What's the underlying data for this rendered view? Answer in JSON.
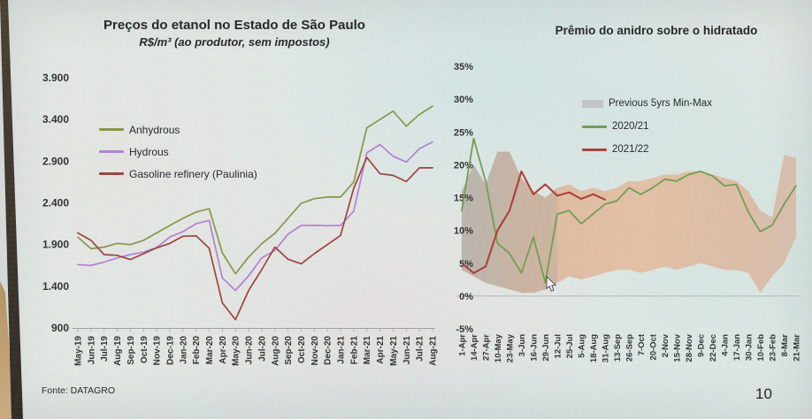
{
  "page": {
    "number": "10"
  },
  "source": "Fonte: DATAGRO",
  "chart_data": [
    {
      "type": "line",
      "title": "Preços do etanol no Estado de São Paulo",
      "subtitle": "R$/m³ (ao produtor, sem impostos)",
      "ylim": [
        900,
        3900
      ],
      "ytick_values": [
        900,
        1400,
        1900,
        2400,
        2900,
        3400,
        3900
      ],
      "ytick_labels": [
        "900",
        "1.400",
        "1.900",
        "2.400",
        "2.900",
        "3.400",
        "3.900"
      ],
      "grid": "off",
      "legend_position": "inside-top-left",
      "categories": [
        "May-19",
        "Jun-19",
        "Jul-19",
        "Aug-19",
        "Sep-19",
        "Oct-19",
        "Nov-19",
        "Dec-19",
        "Jan-20",
        "Feb-20",
        "Mar-20",
        "Apr-20",
        "May-20",
        "Jun-20",
        "Jul-20",
        "Aug-20",
        "Sep-20",
        "Oct-20",
        "Nov-20",
        "Dec-20",
        "Jan-21",
        "Feb-21",
        "Mar-21",
        "Apr-21",
        "May-21",
        "Jun-21",
        "Jul-21",
        "Aug-21"
      ],
      "series": [
        {
          "name": "Anhydrous",
          "color": "#84953f",
          "values": [
            1990,
            1850,
            1870,
            1915,
            1900,
            1950,
            2040,
            2130,
            2215,
            2290,
            2330,
            1800,
            1550,
            1750,
            1910,
            2035,
            2215,
            2395,
            2450,
            2470,
            2470,
            2650,
            3300,
            3400,
            3500,
            3320,
            3460,
            3560
          ]
        },
        {
          "name": "Hydrous",
          "color": "#b57bd5",
          "values": [
            1660,
            1650,
            1690,
            1740,
            1780,
            1810,
            1865,
            1990,
            2055,
            2150,
            2190,
            1500,
            1350,
            1525,
            1740,
            1830,
            2025,
            2130,
            2130,
            2125,
            2130,
            2300,
            3000,
            3100,
            2960,
            2890,
            3050,
            3130
          ]
        },
        {
          "name": "Gasoline refinery (Paulinia)",
          "color": "#9e3a34",
          "values": [
            2040,
            1950,
            1780,
            1770,
            1720,
            1790,
            1860,
            1915,
            2000,
            2005,
            1855,
            1200,
            1000,
            1350,
            1600,
            1870,
            1725,
            1670,
            1790,
            1900,
            2010,
            2575,
            2945,
            2750,
            2730,
            2655,
            2820,
            2820
          ]
        }
      ]
    },
    {
      "type": "line",
      "title": "Prêmio do anidro sobre o hidratado",
      "ylim": [
        -5,
        35
      ],
      "ytick_values": [
        -5,
        0,
        5,
        10,
        15,
        20,
        25,
        30,
        35
      ],
      "ytick_labels": [
        "-5%",
        "0%",
        "5%",
        "10%",
        "15%",
        "20%",
        "25%",
        "30%",
        "35%"
      ],
      "grid": "zero-line-only",
      "legend_position": "inside-top-right",
      "categories": [
        "1-Apr",
        "14-Apr",
        "27-Apr",
        "10-May",
        "23-May",
        "3-Jun",
        "16-Jun",
        "29-Jun",
        "12-Jul",
        "25-Jul",
        "5-Aug",
        "18-Aug",
        "31-Aug",
        "13-Sep",
        "26-Sep",
        "7-Oct",
        "20-Oct",
        "2-Nov",
        "15-Nov",
        "28-Nov",
        "9-Dec",
        "22-Dec",
        "4-Jan",
        "17-Jan",
        "30-Jan",
        "10-Feb",
        "23-Feb",
        "8-Mar",
        "21-Mar"
      ],
      "band": {
        "name": "Previous 5yrs Min-Max",
        "legend_color": "#c6c6c6",
        "min": [
          4,
          3,
          2,
          1.5,
          1,
          0.5,
          0.5,
          1,
          2,
          3,
          2.5,
          3,
          3.5,
          4,
          4,
          3.5,
          4,
          4.5,
          4,
          4.5,
          5,
          4.5,
          4,
          4,
          3.5,
          0.5,
          3,
          5,
          9
        ],
        "max": [
          16,
          20,
          17,
          22,
          22,
          18,
          16,
          15,
          16.5,
          17,
          16,
          16.5,
          16,
          16.5,
          17.5,
          17.5,
          18,
          18.5,
          18.5,
          19,
          19,
          18.5,
          18,
          17.5,
          16,
          13,
          12,
          21.5,
          21
        ]
      },
      "series": [
        {
          "name": "2020/21",
          "color": "#6f9c49",
          "values": [
            13,
            24,
            17.5,
            8,
            6.5,
            3.5,
            9,
            2,
            12.5,
            13,
            11,
            12.5,
            14,
            14.5,
            16.5,
            15.5,
            16.5,
            17.8,
            17.5,
            18.5,
            19,
            18.3,
            16.8,
            17,
            12.8,
            9.8,
            10.8,
            14,
            16.8
          ]
        },
        {
          "name": "2021/22",
          "color": "#ac392f",
          "values": [
            5,
            3.5,
            4.5,
            10,
            13,
            19,
            15.5,
            17,
            15.3,
            15.8,
            14.8,
            15.5,
            14.7,
            null,
            null,
            null,
            null,
            null,
            null,
            null,
            null,
            null,
            null,
            null,
            null,
            null,
            null,
            null,
            null
          ]
        }
      ]
    }
  ]
}
